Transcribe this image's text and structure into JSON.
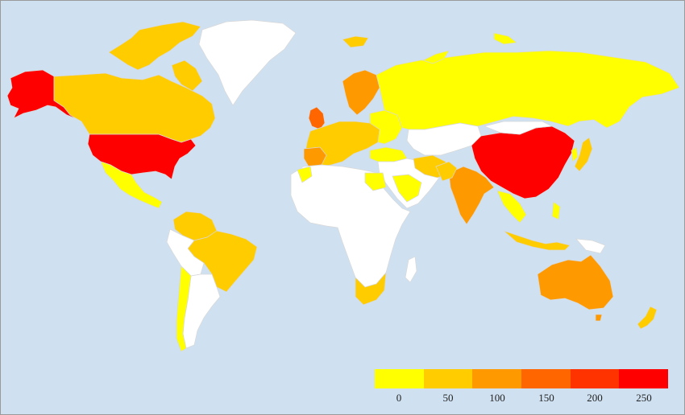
{
  "map": {
    "colors": {
      "ocean": "#cfe1f1",
      "no_data": "#ffffff",
      "border": "#d8d8d8"
    },
    "legend": {
      "colors": [
        "#ffff00",
        "#ffcc00",
        "#ff9900",
        "#ff6600",
        "#ff3300",
        "#ff0000"
      ],
      "ticks": [
        "0",
        "50",
        "100",
        "150",
        "200",
        "250"
      ]
    },
    "regions": [
      {
        "name": "United States",
        "bin": 5
      },
      {
        "name": "Alaska",
        "bin": 5
      },
      {
        "name": "China",
        "bin": 5
      },
      {
        "name": "United Kingdom",
        "bin": 3
      },
      {
        "name": "Australia",
        "bin": 2
      },
      {
        "name": "India",
        "bin": 2
      },
      {
        "name": "Canada",
        "bin": 1
      },
      {
        "name": "Brazil",
        "bin": 1
      },
      {
        "name": "Russia",
        "bin": 0
      },
      {
        "name": "Mexico",
        "bin": 0
      },
      {
        "name": "Greenland",
        "bin": null
      }
    ]
  }
}
